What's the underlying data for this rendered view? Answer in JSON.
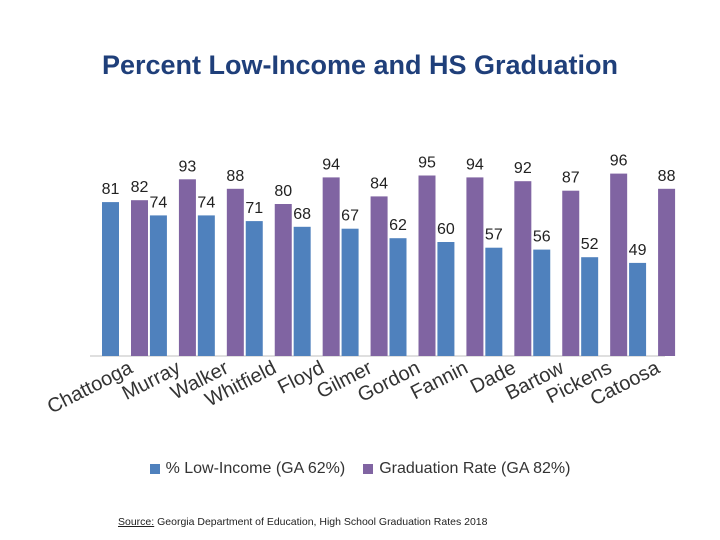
{
  "colors": {
    "series1": "#4f81bd",
    "series2": "#8064a2",
    "title": "#1f3f7a"
  },
  "source": {
    "label": "Source:",
    "text": " Georgia Department of Education, High School Graduation Rates 2018"
  },
  "chart_data": {
    "type": "bar",
    "title": "Percent Low-Income and HS Graduation",
    "xlabel": "",
    "ylabel": "",
    "ylim": [
      0,
      100
    ],
    "grid": false,
    "legend_position": "bottom",
    "categories": [
      "Chattooga",
      "Murray",
      "Walker",
      "Whitfield",
      "Floyd",
      "Gilmer",
      "Gordon",
      "Fannin",
      "Dade",
      "Bartow",
      "Pickens",
      "Catoosa"
    ],
    "series": [
      {
        "name": "% Low-Income (GA 62%)",
        "values": [
          81,
          74,
          74,
          71,
          68,
          67,
          62,
          60,
          57,
          56,
          52,
          49
        ]
      },
      {
        "name": "Graduation Rate (GA 82%)",
        "values": [
          82,
          93,
          88,
          80,
          94,
          84,
          95,
          94,
          92,
          87,
          96,
          88
        ]
      }
    ]
  }
}
